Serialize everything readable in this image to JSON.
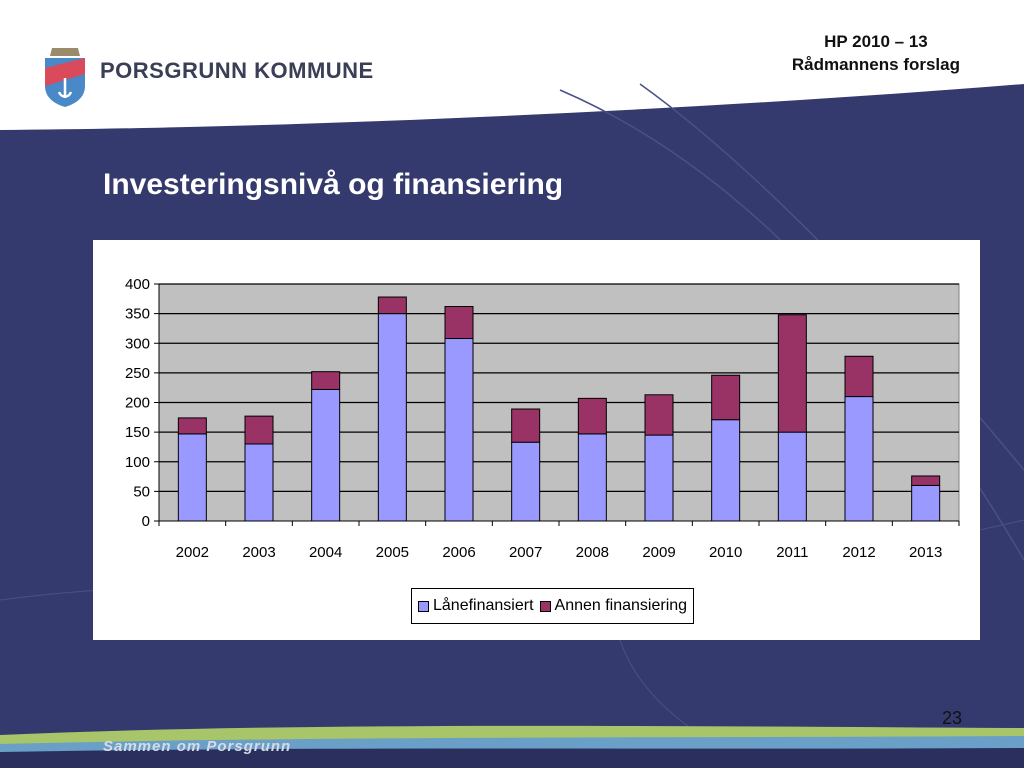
{
  "header": {
    "line1": "HP 2010 – 13",
    "line2": "Rådmannens forslag"
  },
  "brand": {
    "name": "PORSGRUNN KOMMUNE"
  },
  "slide": {
    "title": "Investeringsnivå og finansiering",
    "page_number": "23",
    "slogan": "Sammen om Porsgrunn"
  },
  "colors": {
    "navy": "#353a6e",
    "series1": "#9999ff",
    "series2": "#993366",
    "plot_bg": "#c0c0c0"
  },
  "chart_data": {
    "type": "bar",
    "stacked": true,
    "categories": [
      "2002",
      "2003",
      "2004",
      "2005",
      "2006",
      "2007",
      "2008",
      "2009",
      "2010",
      "2011",
      "2012",
      "2013"
    ],
    "series": [
      {
        "name": "Lånefinansiert",
        "values": [
          147,
          130,
          222,
          350,
          308,
          133,
          147,
          145,
          171,
          150,
          210,
          60
        ]
      },
      {
        "name": "Annen finansiering",
        "values": [
          27,
          47,
          30,
          28,
          54,
          56,
          60,
          68,
          75,
          198,
          68,
          16
        ]
      }
    ],
    "ylim": [
      0,
      400
    ],
    "yticks": [
      "0",
      "50",
      "100",
      "150",
      "200",
      "250",
      "300",
      "350",
      "400"
    ],
    "grid": true,
    "legend_position": "bottom"
  }
}
